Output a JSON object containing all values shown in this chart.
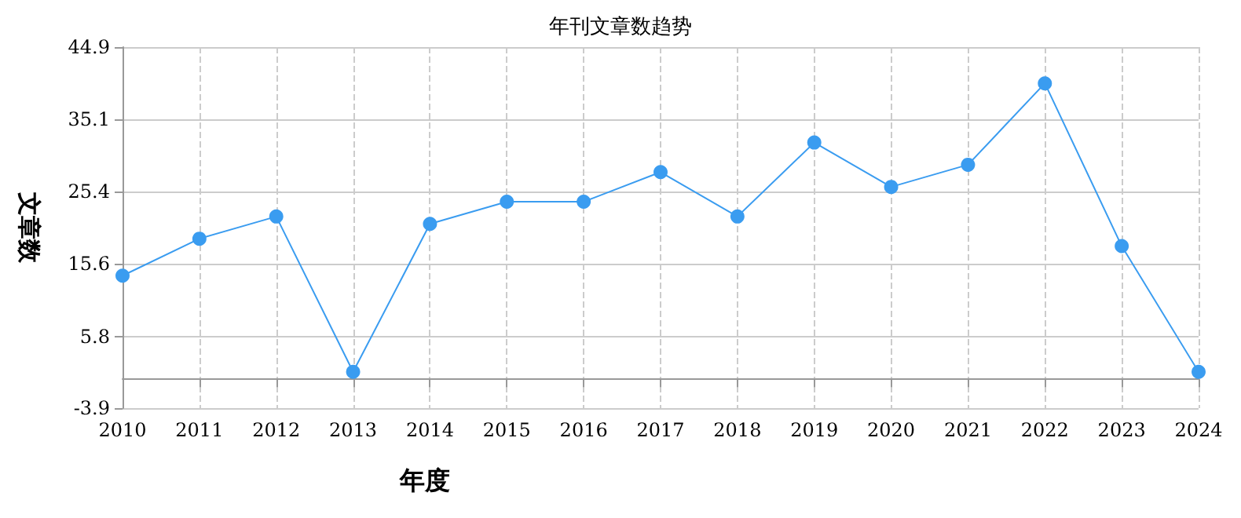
{
  "chart_data": {
    "type": "line",
    "title": "年刊文章数趋势",
    "xlabel": "年度",
    "ylabel": "文章数",
    "categories": [
      "2010",
      "2011",
      "2012",
      "2013",
      "2014",
      "2015",
      "2016",
      "2017",
      "2018",
      "2019",
      "2020",
      "2021",
      "2022",
      "2023",
      "2024"
    ],
    "series": [
      {
        "color": "#3a9cf0",
        "values": [
          14,
          19,
          22,
          1,
          21,
          24,
          24,
          28,
          22,
          32,
          26,
          29,
          40,
          18,
          1
        ]
      }
    ],
    "ylim": [
      -3.9,
      44.9
    ],
    "yticks": [
      -3.9,
      5.8,
      15.6,
      25.4,
      35.1,
      44.9
    ],
    "grid": true,
    "marker": "circle",
    "line_style": "solid"
  }
}
